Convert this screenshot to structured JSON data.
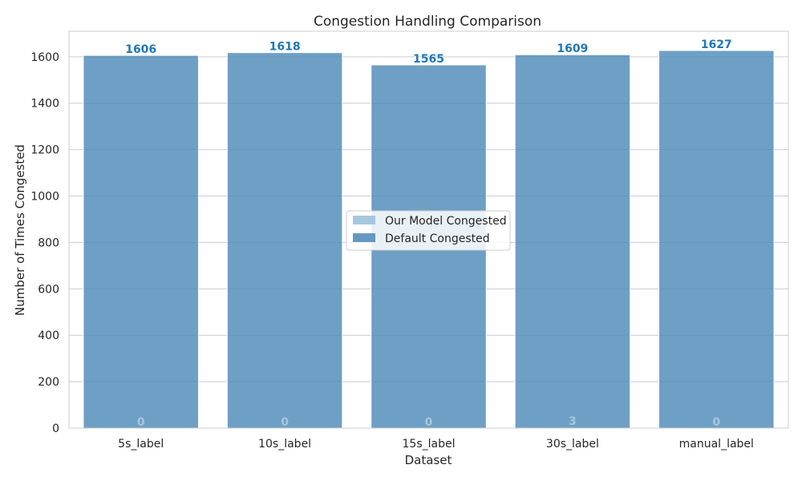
{
  "chart_data": {
    "type": "bar",
    "title": "Congestion Handling Comparison",
    "xlabel": "Dataset",
    "ylabel": "Number of Times Congested",
    "categories": [
      "5s_label",
      "10s_label",
      "15s_label",
      "30s_label",
      "manual_label"
    ],
    "series": [
      {
        "name": "Our Model Congested",
        "values": [
          0,
          0,
          0,
          3,
          0
        ],
        "color": "#a6c8dd"
      },
      {
        "name": "Default Congested",
        "values": [
          1606,
          1618,
          1565,
          1609,
          1627
        ],
        "color": "#4a87b6"
      }
    ],
    "label_colors": {
      "Our Model Congested": "#a6c8dd",
      "Default Congested": "#1f77b4"
    },
    "ylim": [
      0,
      1710
    ],
    "yticks": [
      0,
      200,
      400,
      600,
      800,
      1000,
      1200,
      1400,
      1600
    ],
    "grid": true,
    "legend_position": "center"
  }
}
